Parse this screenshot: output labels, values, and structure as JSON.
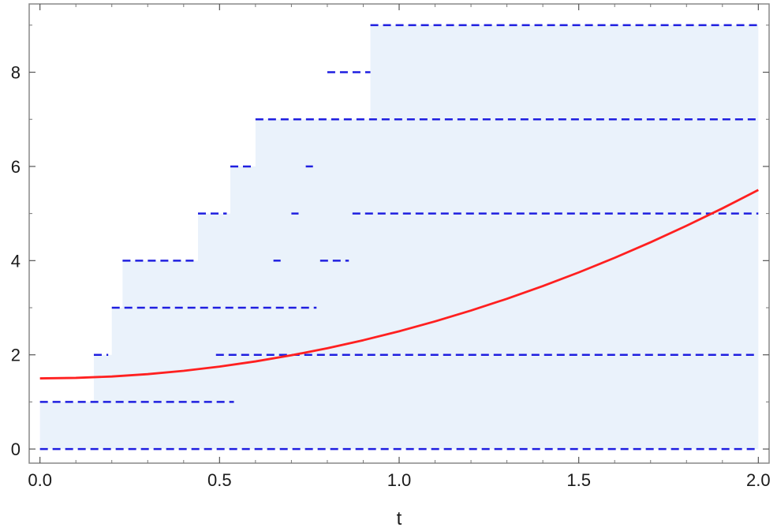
{
  "chart_data": {
    "type": "line",
    "title": "",
    "xlabel": "t",
    "ylabel": "",
    "xlim": [
      -0.03,
      2.03
    ],
    "ylim": [
      -0.3,
      9.45
    ],
    "xticks": [
      {
        "value": 0.0,
        "label": "0.0"
      },
      {
        "value": 0.5,
        "label": "0.5"
      },
      {
        "value": 1.0,
        "label": "1.0"
      },
      {
        "value": 1.5,
        "label": "1.5"
      },
      {
        "value": 2.0,
        "label": "2.0"
      }
    ],
    "yticks": [
      {
        "value": 0,
        "label": "0"
      },
      {
        "value": 2,
        "label": "2"
      },
      {
        "value": 4,
        "label": "4"
      },
      {
        "value": 6,
        "label": "6"
      },
      {
        "value": 8,
        "label": "8"
      }
    ],
    "grid": false,
    "legend": "none",
    "colors": {
      "curve": "#ff2020",
      "steps": "#1f1fe0",
      "fill": "#eaf2fb",
      "frame": "#888888"
    },
    "smooth_curve": {
      "style": "solid",
      "x": [
        0.0,
        0.1,
        0.2,
        0.3,
        0.4,
        0.5,
        0.6,
        0.7,
        0.8,
        0.9,
        1.0,
        1.1,
        1.2,
        1.3,
        1.4,
        1.5,
        1.6,
        1.7,
        1.8,
        1.9,
        2.0
      ],
      "y": [
        1.5,
        1.51,
        1.54,
        1.59,
        1.66,
        1.75,
        1.86,
        1.99,
        2.14,
        2.31,
        2.5,
        2.71,
        2.94,
        3.19,
        3.46,
        3.75,
        4.06,
        4.39,
        4.74,
        5.11,
        5.5
      ]
    },
    "dashed_levels": [
      {
        "y": 0,
        "segments": [
          [
            0.0,
            2.0
          ]
        ]
      },
      {
        "y": 1,
        "segments": [
          [
            0.0,
            0.54
          ]
        ]
      },
      {
        "y": 2,
        "segments": [
          [
            0.15,
            0.19
          ],
          [
            0.49,
            2.0
          ]
        ]
      },
      {
        "y": 3,
        "segments": [
          [
            0.2,
            0.77
          ]
        ]
      },
      {
        "y": 4,
        "segments": [
          [
            0.23,
            0.44
          ],
          [
            0.65,
            0.67
          ],
          [
            0.78,
            0.86
          ]
        ]
      },
      {
        "y": 5,
        "segments": [
          [
            0.44,
            0.52
          ],
          [
            0.7,
            0.72
          ],
          [
            0.87,
            2.0
          ]
        ]
      },
      {
        "y": 6,
        "segments": [
          [
            0.53,
            0.6
          ],
          [
            0.74,
            0.76
          ]
        ]
      },
      {
        "y": 7,
        "segments": [
          [
            0.6,
            2.0
          ]
        ]
      },
      {
        "y": 8,
        "segments": [
          [
            0.8,
            0.92
          ]
        ]
      },
      {
        "y": 9,
        "segments": [
          [
            0.92,
            2.0
          ]
        ]
      }
    ],
    "shaded_envelope": {
      "x": [
        0.0,
        0.07,
        0.15,
        0.2,
        0.23,
        0.44,
        0.53,
        0.6,
        0.92,
        2.0
      ],
      "upper": [
        1,
        1,
        2,
        3,
        4,
        5,
        6,
        7,
        9,
        9
      ]
    }
  }
}
